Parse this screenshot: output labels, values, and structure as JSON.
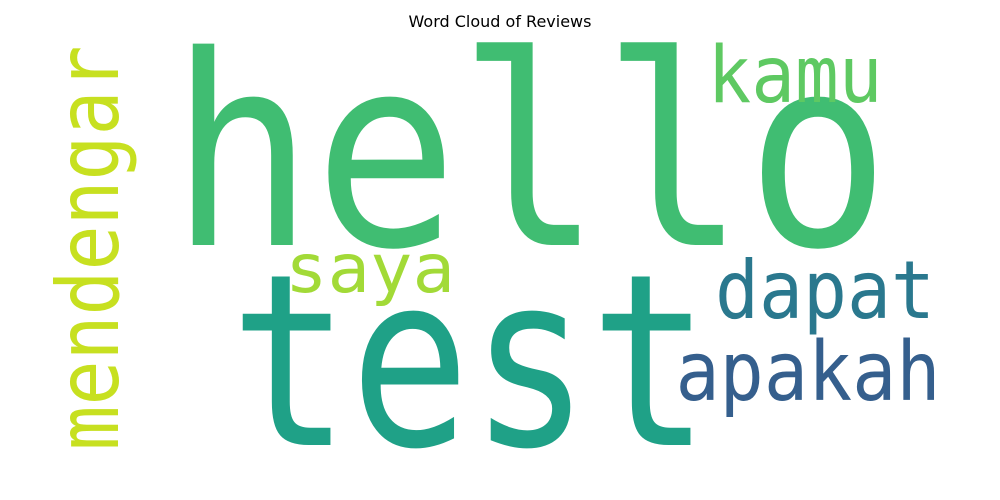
{
  "figure": {
    "title": "Word Cloud of Reviews"
  },
  "words": [
    {
      "text": "hello",
      "color": "#40bd72"
    },
    {
      "text": "test",
      "color": "#1fa187"
    },
    {
      "text": "mendengar",
      "color": "#c7e020"
    },
    {
      "text": "kamu",
      "color": "#5ec962"
    },
    {
      "text": "saya",
      "color": "#a2da37"
    },
    {
      "text": "dapat",
      "color": "#2a788e"
    },
    {
      "text": "apakah",
      "color": "#355f8d"
    }
  ]
}
